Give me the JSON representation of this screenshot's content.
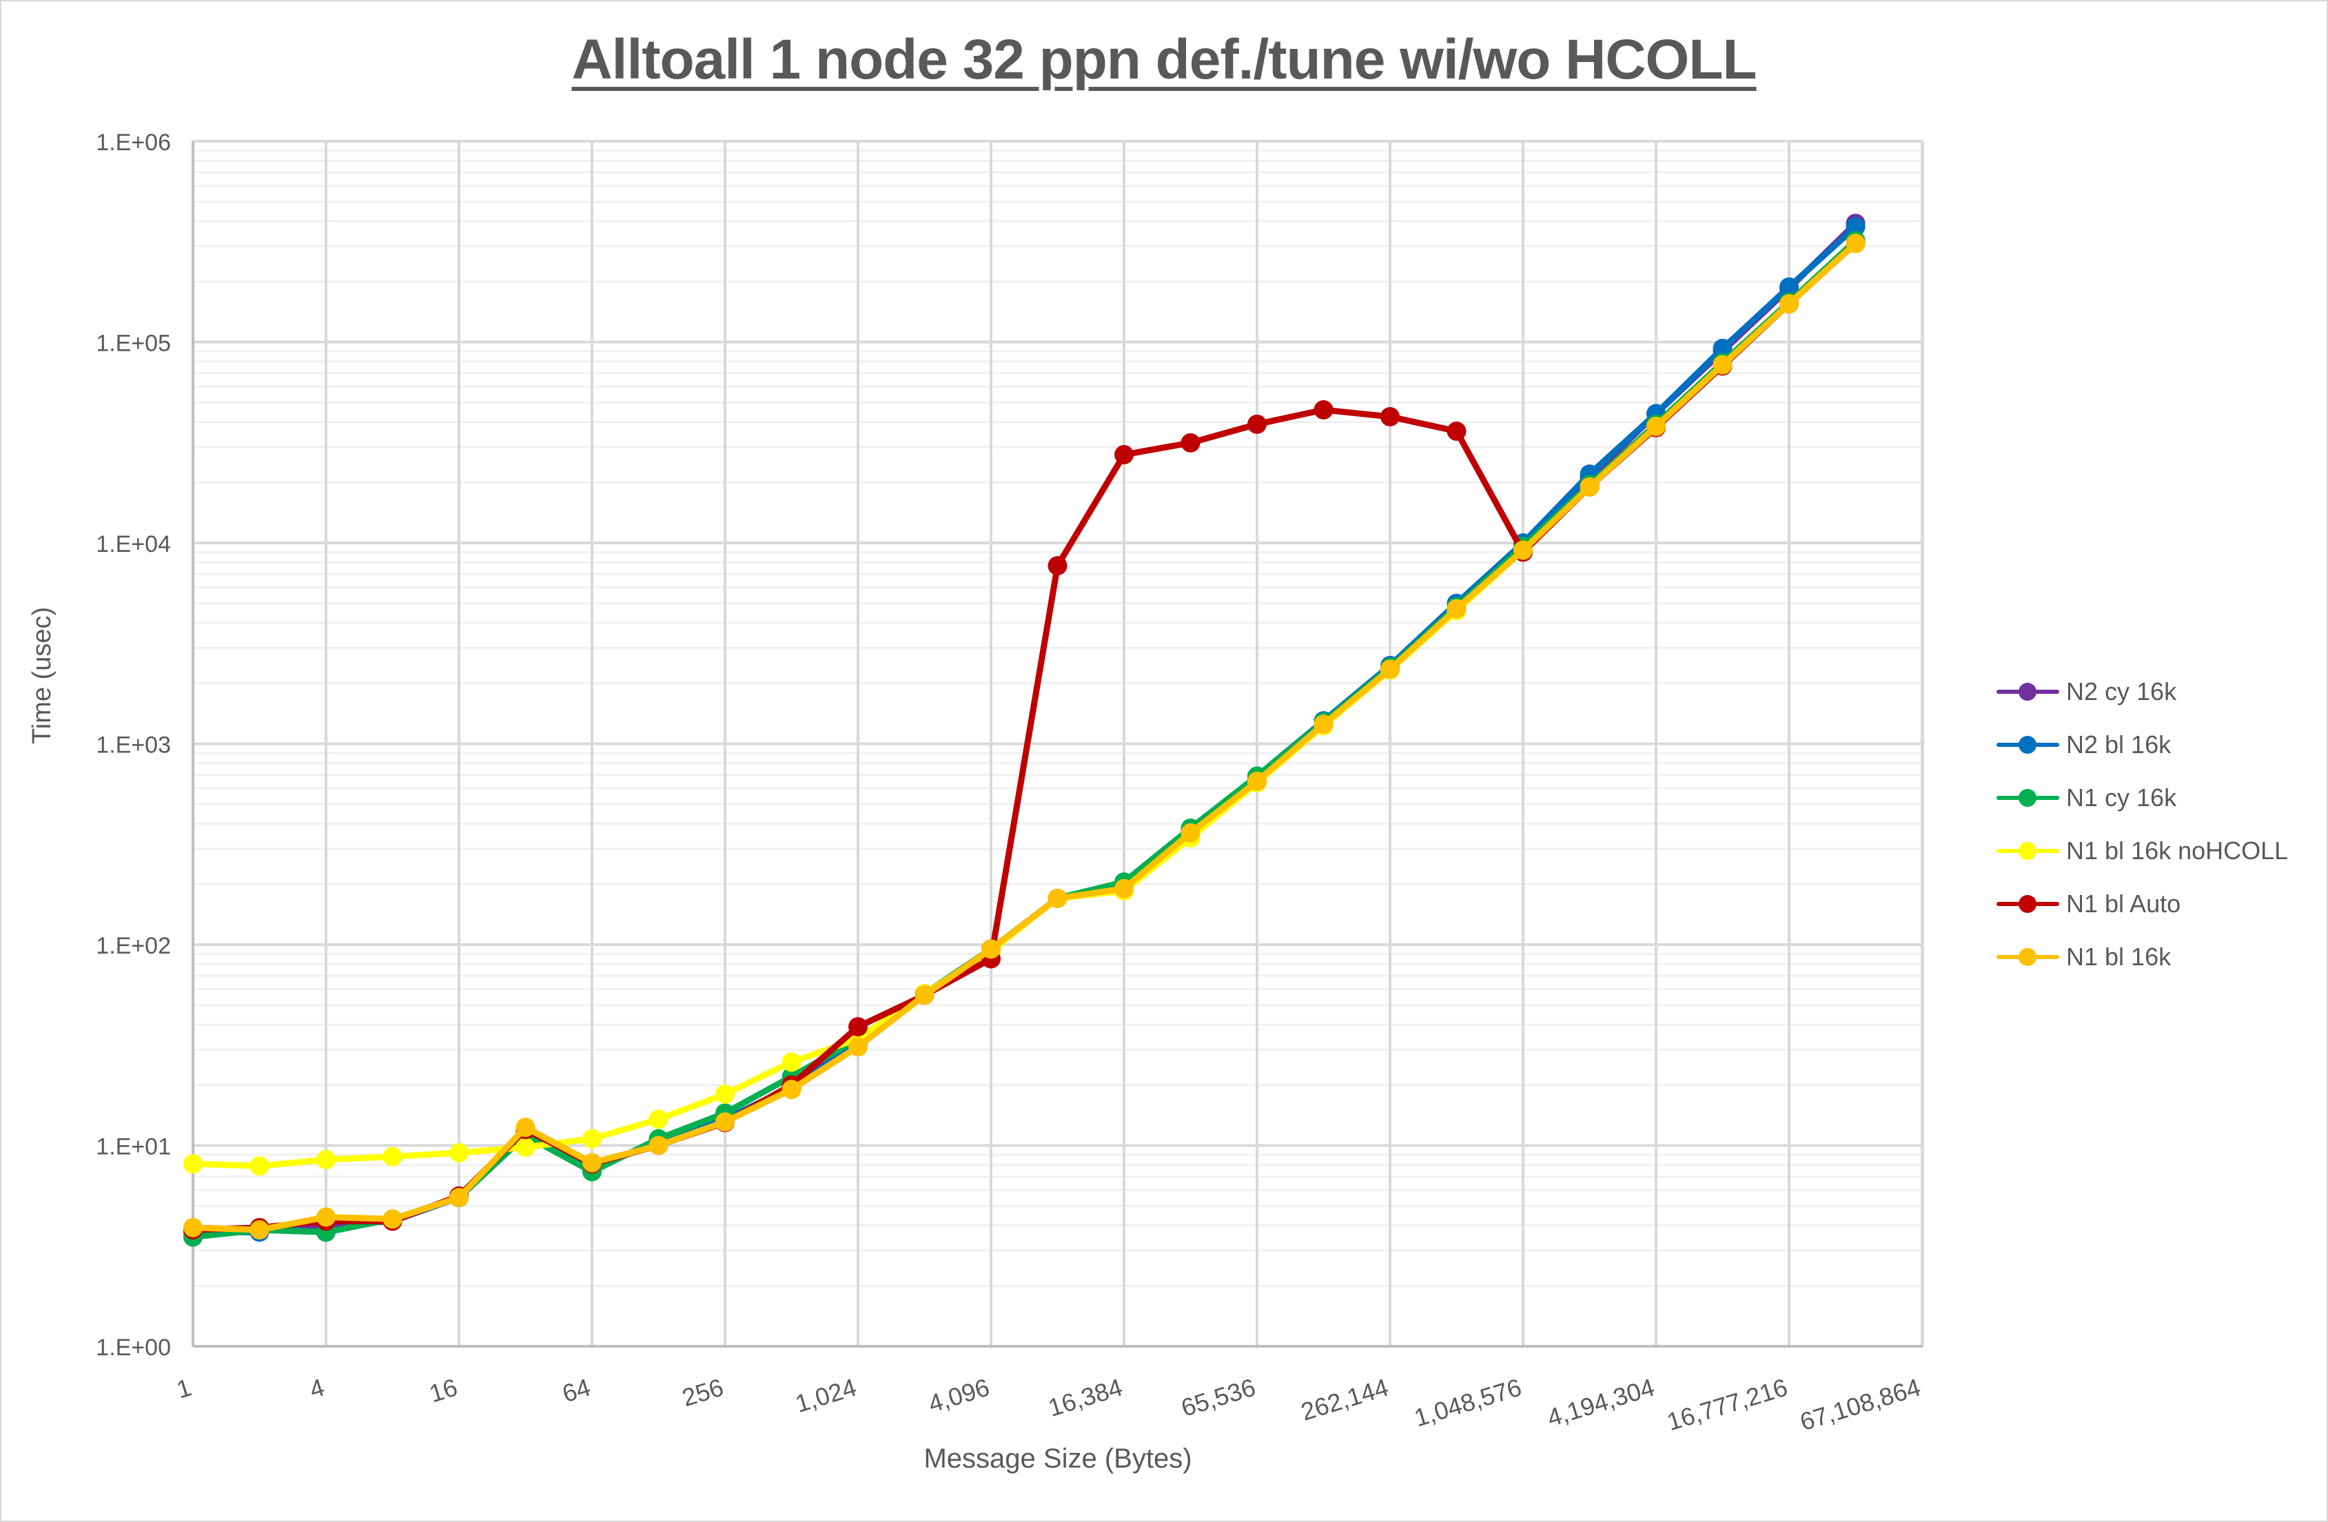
{
  "chart_data": {
    "type": "line",
    "title": "Alltoall 1 node 32 ppn def./tune wi/wo HCOLL",
    "xlabel": "Message Size (Bytes)",
    "ylabel": "Time (usec)",
    "x_scale": "log2",
    "y_scale": "log10",
    "ylim": [
      1,
      1000000
    ],
    "grid": true,
    "legend_position": "right",
    "y_tick_labels": [
      "1.E+00",
      "1.E+01",
      "1.E+02",
      "1.E+03",
      "1.E+04",
      "1.E+05",
      "1.E+06"
    ],
    "x_tick_labels": [
      "1",
      "4",
      "16",
      "64",
      "256",
      "1,024",
      "4,096",
      "16,384",
      "65,536",
      "262,144",
      "1,048,576",
      "4,194,304",
      "16,777,216",
      "67,108,864"
    ],
    "x": [
      1,
      2,
      4,
      8,
      16,
      32,
      64,
      128,
      256,
      512,
      1024,
      2048,
      4096,
      8192,
      16384,
      32768,
      65536,
      131072,
      262144,
      524288,
      1048576,
      2097152,
      4194304,
      8388608,
      16777216,
      33554432
    ],
    "series": [
      {
        "name": "N2 cy 16k",
        "color": "#7030A0",
        "values": [
          3.7,
          3.8,
          4.0,
          4.2,
          5.6,
          12.0,
          7.9,
          10.2,
          13.5,
          19.5,
          33,
          57,
          95,
          170,
          195,
          370,
          680,
          1300,
          2450,
          5000,
          9900,
          21000,
          44000,
          90000,
          185000,
          390000
        ]
      },
      {
        "name": "N2 bl 16k",
        "color": "#0070C0",
        "values": [
          3.7,
          3.7,
          4.3,
          4.2,
          5.5,
          11.8,
          7.8,
          10.3,
          13.5,
          19.5,
          32,
          57,
          95,
          170,
          195,
          375,
          690,
          1300,
          2450,
          5000,
          10000,
          22000,
          44000,
          93000,
          188000,
          375000
        ]
      },
      {
        "name": "N1 cy 16k",
        "color": "#00B050",
        "values": [
          3.5,
          3.8,
          3.7,
          4.3,
          5.5,
          11.2,
          7.4,
          10.8,
          14.5,
          22,
          34,
          57,
          95,
          170,
          205,
          380,
          690,
          1280,
          2400,
          4800,
          9600,
          19500,
          39000,
          79000,
          158000,
          320000
        ]
      },
      {
        "name": "N1 bl 16k noHCOLL",
        "color": "#FFFF00",
        "values": [
          8.1,
          7.9,
          8.5,
          8.8,
          9.2,
          9.8,
          10.8,
          13.5,
          18,
          26,
          34,
          57,
          93,
          170,
          185,
          340,
          640,
          1230,
          2330,
          4600,
          9200,
          19000,
          38000,
          77000,
          155000,
          310000
        ]
      },
      {
        "name": "N1 bl Auto",
        "color": "#C00000",
        "values": [
          3.8,
          3.9,
          4.2,
          4.2,
          5.6,
          12.0,
          8.1,
          10.0,
          13.0,
          20,
          39,
          56,
          85,
          7700,
          27500,
          31500,
          39000,
          46000,
          42500,
          36000,
          9000,
          19000,
          37500,
          76000,
          155000,
          310000
        ]
      },
      {
        "name": "N1 bl 16k",
        "color": "#FFC000",
        "values": [
          3.9,
          3.8,
          4.4,
          4.3,
          5.5,
          12.3,
          8.2,
          10.0,
          13.1,
          19.0,
          31,
          56,
          95,
          170,
          190,
          360,
          650,
          1250,
          2350,
          4700,
          9200,
          19000,
          38000,
          77000,
          155000,
          310000
        ]
      }
    ]
  }
}
